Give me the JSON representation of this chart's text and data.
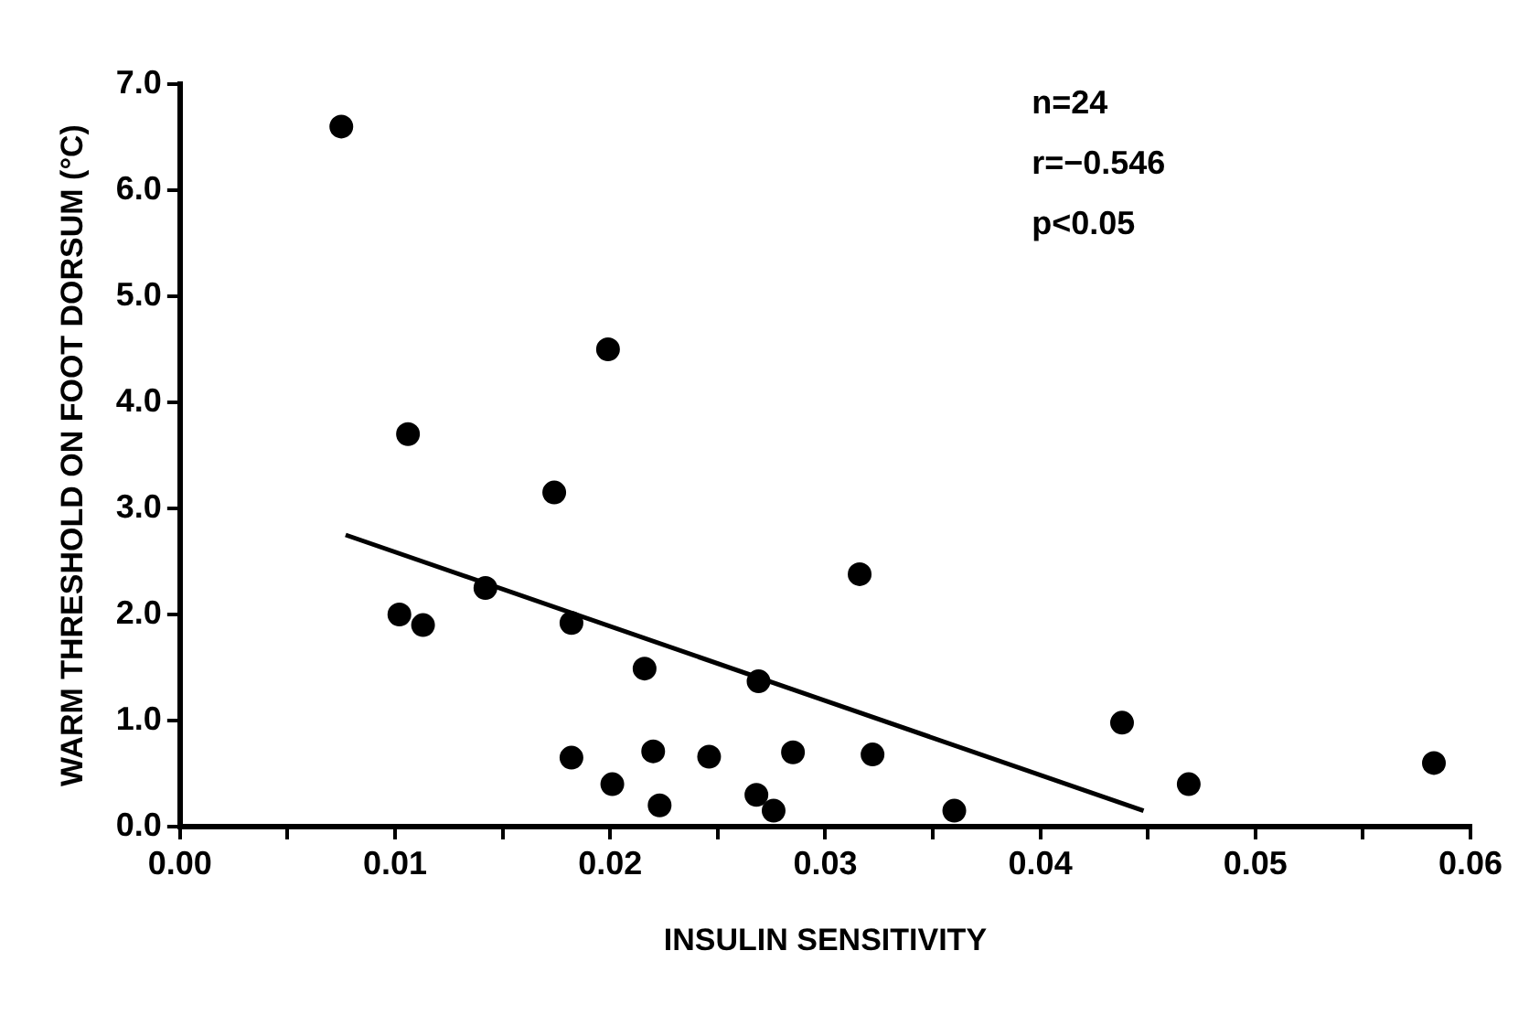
{
  "chart_data": {
    "type": "scatter",
    "xlabel": "INSULIN SENSITIVITY",
    "ylabel": "WARM THRESHOLD ON FOOT DORSUM (°C)",
    "annotations": [
      "n=24",
      "r=−0.546",
      "p<0.05"
    ],
    "series": [
      {
        "type": "scatter",
        "color": "#000000",
        "marker": "circle",
        "x": [
          0.0075,
          0.0106,
          0.0102,
          0.0113,
          0.0142,
          0.0174,
          0.0199,
          0.0182,
          0.0216,
          0.0269,
          0.0316,
          0.0182,
          0.0201,
          0.022,
          0.0223,
          0.0246,
          0.0268,
          0.0276,
          0.0285,
          0.0322,
          0.036,
          0.0438,
          0.0469,
          0.0583
        ],
        "values": [
          6.6,
          3.7,
          2.0,
          1.9,
          2.25,
          3.15,
          4.5,
          1.92,
          1.49,
          1.37,
          2.38,
          0.65,
          0.4,
          0.71,
          0.2,
          0.66,
          0.3,
          0.15,
          0.7,
          0.68,
          0.15,
          0.98,
          0.4,
          0.6
        ]
      },
      {
        "type": "line",
        "color": "#000000",
        "marker": "none",
        "line_style": "solid",
        "x": [
          0.0077,
          0.0448
        ],
        "values": [
          2.75,
          0.15
        ]
      }
    ],
    "xlim": [
      0,
      0.06
    ],
    "xticks": [
      {
        "value": 0,
        "label": "0.00"
      },
      {
        "value": 0.005,
        "label": null
      },
      {
        "value": 0.01,
        "label": "0.01"
      },
      {
        "value": 0.015,
        "label": null
      },
      {
        "value": 0.02,
        "label": "0.02"
      },
      {
        "value": 0.025,
        "label": null
      },
      {
        "value": 0.03,
        "label": "0.03"
      },
      {
        "value": 0.035,
        "label": null
      },
      {
        "value": 0.04,
        "label": "0.04"
      },
      {
        "value": 0.045,
        "label": null
      },
      {
        "value": 0.05,
        "label": "0.05"
      },
      {
        "value": 0.055,
        "label": null
      },
      {
        "value": 0.06,
        "label": "0.06"
      }
    ],
    "ylim": [
      0,
      7
    ],
    "yticks": [
      {
        "value": 0,
        "label": "0.0"
      },
      {
        "value": 1,
        "label": "1.0"
      },
      {
        "value": 2,
        "label": "2.0"
      },
      {
        "value": 3,
        "label": "3.0"
      },
      {
        "value": 4,
        "label": "4.0"
      },
      {
        "value": 5,
        "label": "5.0"
      },
      {
        "value": 6,
        "label": "6.0"
      },
      {
        "value": 7,
        "label": "7.0"
      }
    ],
    "grid": false,
    "legend": false
  }
}
